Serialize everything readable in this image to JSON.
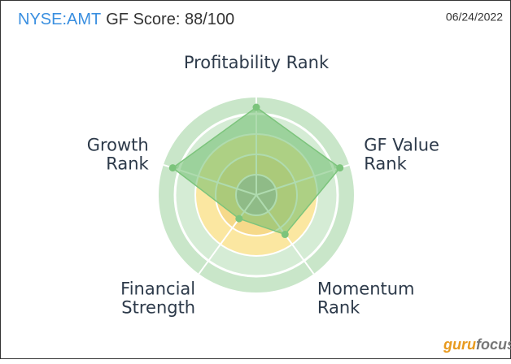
{
  "header": {
    "ticker": "NYSE:AMT",
    "title": "GF Score: 88/100",
    "date": "06/24/2022"
  },
  "chart_data": {
    "type": "radar",
    "categories": [
      [
        "Profitability Rank"
      ],
      [
        "GF Value",
        "Rank"
      ],
      [
        "Momentum",
        "Rank"
      ],
      [
        "Financial",
        "Strength"
      ],
      [
        "Growth",
        "Rank"
      ]
    ],
    "values": [
      9,
      9,
      5,
      3,
      9
    ],
    "rlim": [
      0,
      10
    ],
    "color": "#7cc47c"
  },
  "logo_parts": [
    "guru",
    "focus"
  ]
}
